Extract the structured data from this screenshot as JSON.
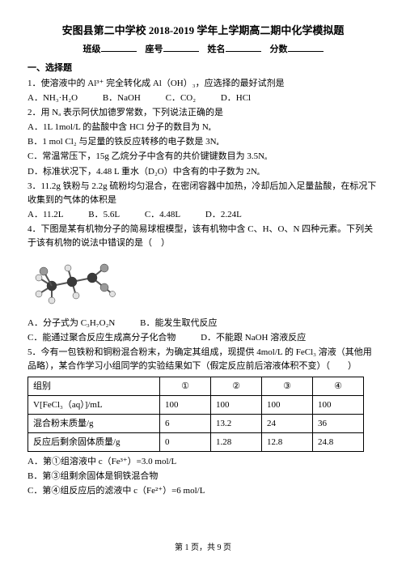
{
  "header": {
    "title": "安图县第二中学校 2018-2019 学年上学期高二期中化学模拟题",
    "class_label": "班级",
    "seat_label": "座号",
    "name_label": "姓名",
    "score_label": "分数"
  },
  "section1_title": "一、选择题",
  "q1": {
    "stem": "1．使溶液中的 Al³⁺ 完全转化成 Al（OH）₃，应选择的最好试剂是",
    "a": "A．NH₃·H₂O",
    "b": "B．NaOH",
    "c": "C．CO₂",
    "d": "D．HCl"
  },
  "q2": {
    "stem": "2．用 Nₐ 表示阿伏加德罗常数，下列说法正确的是",
    "a": "A．1L 1mol/L 的盐酸中含 HCl 分子的数目为 Nₐ",
    "b": "B．1 mol Cl₂ 与足量的铁反应转移的电子数是 3Nₐ",
    "c": "C．常温常压下，15g 乙烷分子中含有的共价键键数目为 3.5Nₐ",
    "d": "D．标准状况下，4.48 L 重水（D₂O）中含有的中子数为 2Nₐ"
  },
  "q3": {
    "stem": "3．11.2g 铁粉与 2.2g 硫粉均匀混合，在密闭容器中加热，冷却后加入足量盐酸，在标况下收集到的气体的体积是",
    "a": "A．11.2L",
    "b": "B．5.6L",
    "c": "C．4.48L",
    "d": "D．2.24L"
  },
  "q4": {
    "stem1": "4．下图是某有机物分子的简易球棍模型，该有机物中含 C、H、O、N 四种元素。下列关于该有机物的说法中错误的是（　）",
    "a": "A．分子式为 C₃H₇O₂N",
    "b": "B．能发生取代反应",
    "c": "C．能通过聚合反应生成高分子化合物",
    "d": "D．不能跟 NaOH 溶液反应"
  },
  "q5": {
    "stem1": "5．今有一包铁粉和铜粉混合粉末，为确定其组成，现提供 4mol/L 的 FeCl₃ 溶液（其他用品略），某合作学习小组同学的实验结果如下（假定反应前后溶液体积不变）（　　）",
    "table": {
      "h0": "组别",
      "h1_raw": "①",
      "h2_raw": "②",
      "h3_raw": "③",
      "h4_raw": "④",
      "r1_label": "V[FeCl₃（aq）]/mL",
      "r1": [
        "100",
        "100",
        "100",
        "100"
      ],
      "r2_label": "混合粉末质量/g",
      "r2": [
        "6",
        "13.2",
        "24",
        "36"
      ],
      "r3_label": "反应后剩余固体质量/g",
      "r3": [
        "0",
        "1.28",
        "12.8",
        "24.8"
      ]
    },
    "a": "A．第①组溶液中 c（Fe³⁺）=3.0 mol/L",
    "b": "B．第③组剩余固体是铜铁混合物",
    "c": "C．第④组反应后的滤液中 c（Fe²⁺）=6 mol/L"
  },
  "molecule": {
    "atom_dark": "#3a3a3a",
    "atom_mid": "#9a9a9a",
    "atom_light": "#e2e2e2",
    "bond": "#555555"
  },
  "footer": "第 1 页，共 9 页"
}
